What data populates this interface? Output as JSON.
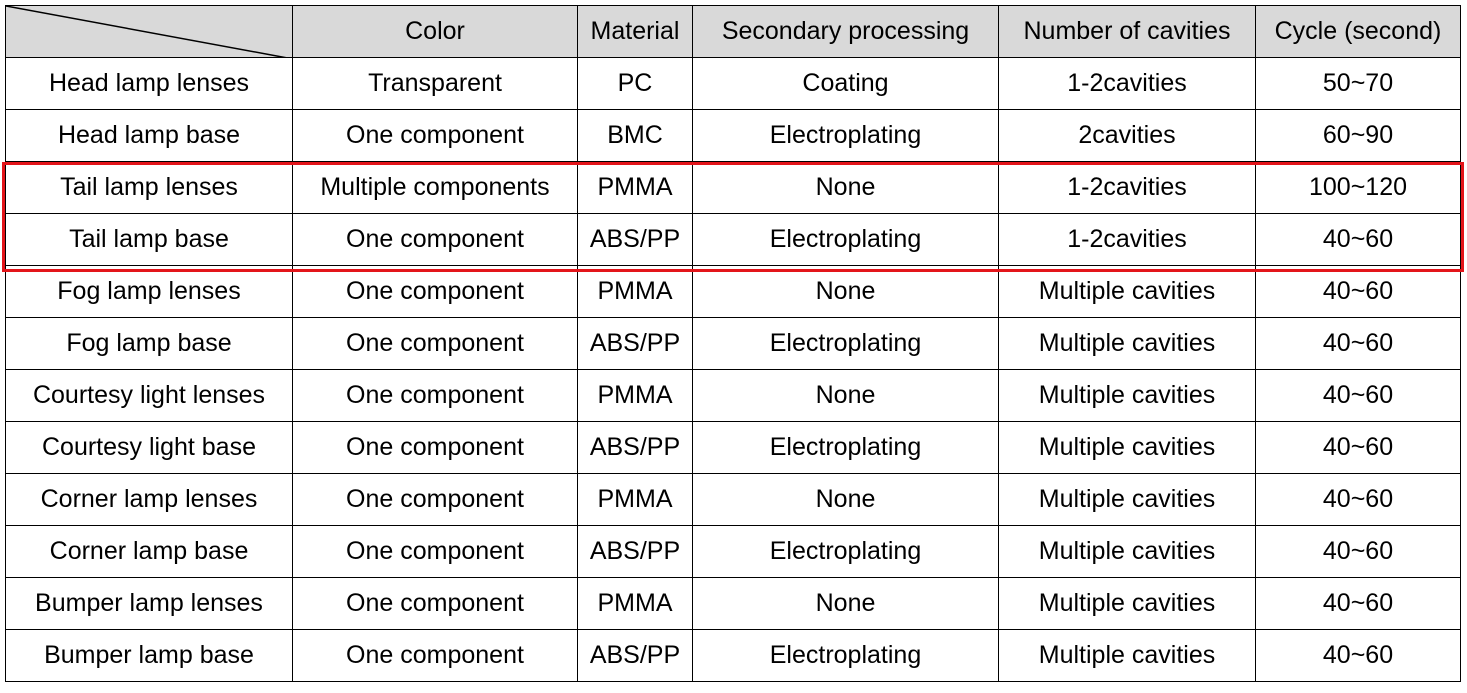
{
  "table": {
    "columns": [
      "Color",
      "Material",
      "Secondary processing",
      "Number of cavities",
      "Cycle (second)"
    ],
    "rows": [
      [
        "Head lamp lenses",
        "Transparent",
        "PC",
        "Coating",
        "1-2cavities",
        "50~70"
      ],
      [
        "Head lamp base",
        "One component",
        "BMC",
        "Electroplating",
        "2cavities",
        "60~90"
      ],
      [
        "Tail lamp lenses",
        "Multiple components",
        "PMMA",
        "None",
        "1-2cavities",
        "100~120"
      ],
      [
        "Tail lamp base",
        "One component",
        "ABS/PP",
        "Electroplating",
        "1-2cavities",
        "40~60"
      ],
      [
        "Fog lamp lenses",
        "One component",
        "PMMA",
        "None",
        "Multiple cavities",
        "40~60"
      ],
      [
        "Fog lamp base",
        "One component",
        "ABS/PP",
        "Electroplating",
        "Multiple cavities",
        "40~60"
      ],
      [
        "Courtesy light lenses",
        "One component",
        "PMMA",
        "None",
        "Multiple cavities",
        "40~60"
      ],
      [
        "Courtesy light base",
        "One component",
        "ABS/PP",
        "Electroplating",
        "Multiple cavities",
        "40~60"
      ],
      [
        "Corner lamp lenses",
        "One component",
        "PMMA",
        "None",
        "Multiple cavities",
        "40~60"
      ],
      [
        "Corner lamp base",
        "One component",
        "ABS/PP",
        "Electroplating",
        "Multiple cavities",
        "40~60"
      ],
      [
        "Bumper lamp lenses",
        "One component",
        "PMMA",
        "None",
        "Multiple cavities",
        "40~60"
      ],
      [
        "Bumper lamp base",
        "One component",
        "ABS/PP",
        "Electroplating",
        "Multiple cavities",
        "40~60"
      ]
    ]
  }
}
